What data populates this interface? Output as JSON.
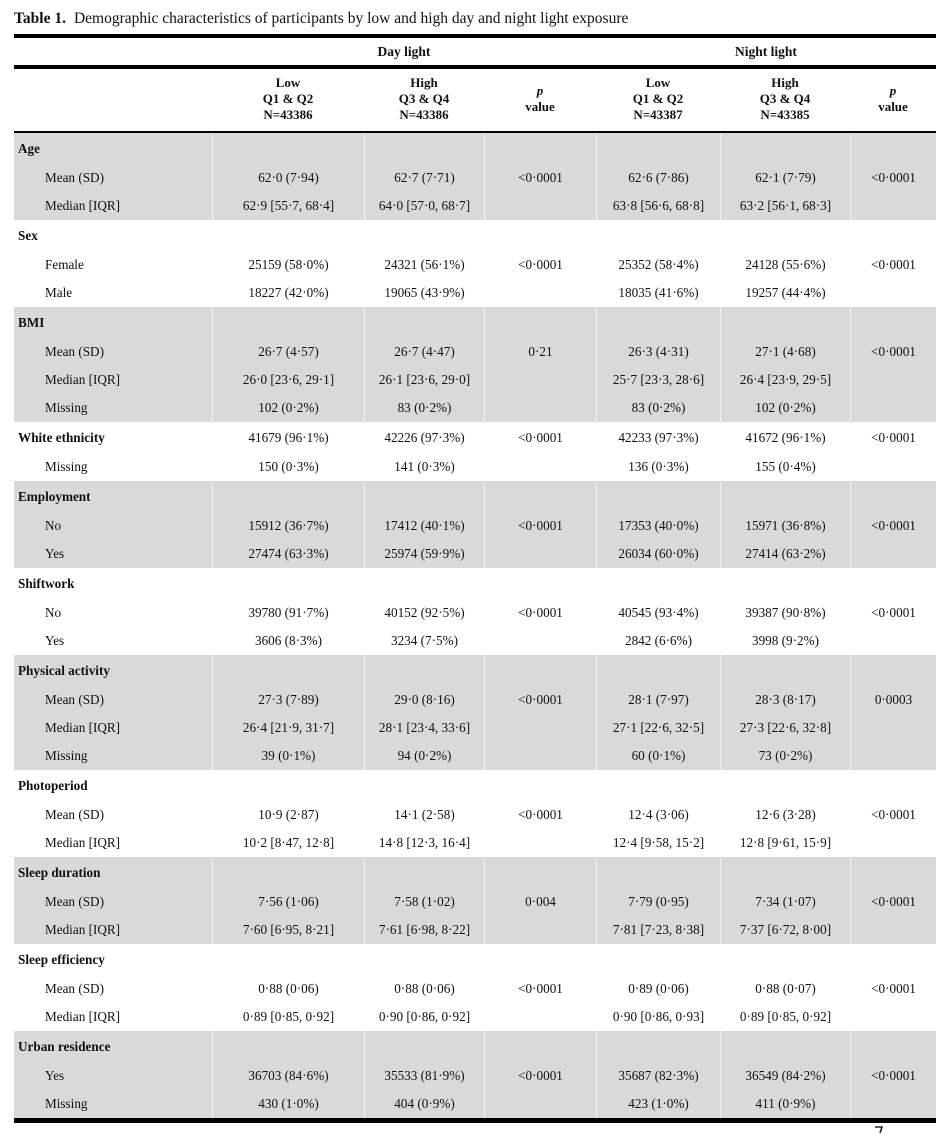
{
  "title": {
    "label": "Table 1.",
    "text": "Demographic characteristics of participants by low and high day and night light exposure"
  },
  "table": {
    "group_headers": {
      "day": "Day light",
      "night": "Night light"
    },
    "columns": [
      {
        "line1": "Low",
        "line2": "Q1 & Q2",
        "line3": "N=43386"
      },
      {
        "line1": "High",
        "line2": "Q3 & Q4",
        "line3": "N=43386"
      },
      {
        "line1": "p",
        "line2": "value"
      },
      {
        "line1": "Low",
        "line2": "Q1 & Q2",
        "line3": "N=43387"
      },
      {
        "line1": "High",
        "line2": "Q3 & Q4",
        "line3": "N=43385"
      },
      {
        "line1": "p",
        "line2": "value"
      }
    ],
    "sections": [
      {
        "name": "Age",
        "shaded": true,
        "header_values": [
          "",
          "",
          "",
          "",
          "",
          ""
        ],
        "rows": [
          {
            "label": "Mean (SD)",
            "values": [
              "62·0 (7·94)",
              "62·7 (7·71)",
              "<0·0001",
              "62·6 (7·86)",
              "62·1 (7·79)",
              "<0·0001"
            ]
          },
          {
            "label": "Median [IQR]",
            "values": [
              "62·9 [55·7, 68·4]",
              "64·0 [57·0, 68·7]",
              "",
              "63·8 [56·6, 68·8]",
              "63·2 [56·1, 68·3]",
              ""
            ]
          }
        ]
      },
      {
        "name": "Sex",
        "shaded": false,
        "header_values": [
          "",
          "",
          "",
          "",
          "",
          ""
        ],
        "rows": [
          {
            "label": "Female",
            "values": [
              "25159 (58·0%)",
              "24321 (56·1%)",
              "<0·0001",
              "25352 (58·4%)",
              "24128 (55·6%)",
              "<0·0001"
            ]
          },
          {
            "label": "Male",
            "values": [
              "18227 (42·0%)",
              "19065 (43·9%)",
              "",
              "18035 (41·6%)",
              "19257 (44·4%)",
              ""
            ]
          }
        ]
      },
      {
        "name": "BMI",
        "shaded": true,
        "header_values": [
          "",
          "",
          "",
          "",
          "",
          ""
        ],
        "rows": [
          {
            "label": "Mean (SD)",
            "values": [
              "26·7 (4·57)",
              "26·7 (4·47)",
              "0·21",
              "26·3 (4·31)",
              "27·1 (4·68)",
              "<0·0001"
            ]
          },
          {
            "label": "Median [IQR]",
            "values": [
              "26·0 [23·6, 29·1]",
              "26·1 [23·6, 29·0]",
              "",
              "25·7 [23·3, 28·6]",
              "26·4 [23·9, 29·5]",
              ""
            ]
          },
          {
            "label": "Missing",
            "values": [
              "102 (0·2%)",
              "83 (0·2%)",
              "",
              "83 (0·2%)",
              "102 (0·2%)",
              ""
            ]
          }
        ]
      },
      {
        "name": "White ethnicity",
        "shaded": false,
        "header_values": [
          "41679 (96·1%)",
          "42226 (97·3%)",
          "<0·0001",
          "42233 (97·3%)",
          "41672 (96·1%)",
          "<0·0001"
        ],
        "rows": [
          {
            "label": "Missing",
            "values": [
              "150 (0·3%)",
              "141 (0·3%)",
              "",
              "136 (0·3%)",
              "155 (0·4%)",
              ""
            ]
          }
        ]
      },
      {
        "name": "Employment",
        "shaded": true,
        "header_values": [
          "",
          "",
          "",
          "",
          "",
          ""
        ],
        "rows": [
          {
            "label": "No",
            "values": [
              "15912 (36·7%)",
              "17412 (40·1%)",
              "<0·0001",
              "17353 (40·0%)",
              "15971 (36·8%)",
              "<0·0001"
            ]
          },
          {
            "label": "Yes",
            "values": [
              "27474 (63·3%)",
              "25974 (59·9%)",
              "",
              "26034 (60·0%)",
              "27414 (63·2%)",
              ""
            ]
          }
        ]
      },
      {
        "name": "Shiftwork",
        "shaded": false,
        "header_values": [
          "",
          "",
          "",
          "",
          "",
          ""
        ],
        "rows": [
          {
            "label": "No",
            "values": [
              "39780 (91·7%)",
              "40152 (92·5%)",
              "<0·0001",
              "40545 (93·4%)",
              "39387 (90·8%)",
              "<0·0001"
            ]
          },
          {
            "label": "Yes",
            "values": [
              "3606 (8·3%)",
              "3234 (7·5%)",
              "",
              "2842 (6·6%)",
              "3998 (9·2%)",
              ""
            ]
          }
        ]
      },
      {
        "name": "Physical activity",
        "shaded": true,
        "header_values": [
          "",
          "",
          "",
          "",
          "",
          ""
        ],
        "rows": [
          {
            "label": "Mean (SD)",
            "values": [
              "27·3 (7·89)",
              "29·0 (8·16)",
              "<0·0001",
              "28·1 (7·97)",
              "28·3 (8·17)",
              "0·0003"
            ]
          },
          {
            "label": "Median [IQR]",
            "values": [
              "26·4 [21·9, 31·7]",
              "28·1 [23·4, 33·6]",
              "",
              "27·1 [22·6, 32·5]",
              "27·3 [22·6, 32·8]",
              ""
            ]
          },
          {
            "label": "Missing",
            "values": [
              "39 (0·1%)",
              "94 (0·2%)",
              "",
              "60 (0·1%)",
              "73 (0·2%)",
              ""
            ]
          }
        ]
      },
      {
        "name": "Photoperiod",
        "shaded": false,
        "header_values": [
          "",
          "",
          "",
          "",
          "",
          ""
        ],
        "rows": [
          {
            "label": "Mean (SD)",
            "values": [
              "10·9 (2·87)",
              "14·1 (2·58)",
              "<0·0001",
              "12·4 (3·06)",
              "12·6 (3·28)",
              "<0·0001"
            ]
          },
          {
            "label": "Median [IQR]",
            "values": [
              "10·2 [8·47, 12·8]",
              "14·8 [12·3, 16·4]",
              "",
              "12·4 [9·58, 15·2]",
              "12·8 [9·61, 15·9]",
              ""
            ]
          }
        ]
      },
      {
        "name": "Sleep duration",
        "shaded": true,
        "header_values": [
          "",
          "",
          "",
          "",
          "",
          ""
        ],
        "rows": [
          {
            "label": "Mean (SD)",
            "values": [
              "7·56 (1·06)",
              "7·58 (1·02)",
              "0·004",
              "7·79 (0·95)",
              "7·34 (1·07)",
              "<0·0001"
            ]
          },
          {
            "label": "Median [IQR]",
            "values": [
              "7·60 [6·95, 8·21]",
              "7·61 [6·98, 8·22]",
              "",
              "7·81 [7·23, 8·38]",
              "7·37 [6·72, 8·00]",
              ""
            ]
          }
        ]
      },
      {
        "name": "Sleep efficiency",
        "shaded": false,
        "header_values": [
          "",
          "",
          "",
          "",
          "",
          ""
        ],
        "rows": [
          {
            "label": "Mean (SD)",
            "values": [
              "0·88 (0·06)",
              "0·88 (0·06)",
              "<0·0001",
              "0·89 (0·06)",
              "0·88 (0·07)",
              "<0·0001"
            ]
          },
          {
            "label": "Median [IQR]",
            "values": [
              "0·89 [0·85, 0·92]",
              "0·90 [0·86, 0·92]",
              "",
              "0·90 [0·86, 0·93]",
              "0·89 [0·85, 0·92]",
              ""
            ]
          }
        ]
      },
      {
        "name": "Urban residence",
        "shaded": true,
        "header_values": [
          "",
          "",
          "",
          "",
          "",
          ""
        ],
        "rows": [
          {
            "label": "Yes",
            "values": [
              "36703 (84·6%)",
              "35533 (81·9%)",
              "<0·0001",
              "35687 (82·3%)",
              "36549 (84·2%)",
              "<0·0001"
            ]
          },
          {
            "label": "Missing",
            "values": [
              "430 (1·0%)",
              "404 (0·9%)",
              "",
              "423 (1·0%)",
              "411 (0·9%)",
              ""
            ]
          }
        ]
      },
      {
        "name": "colors",
        "shaded": false,
        "meta": true,
        "shade_hex": "#d9d9d9",
        "rule_hex": "#000000",
        "rows": []
      }
    ]
  }
}
